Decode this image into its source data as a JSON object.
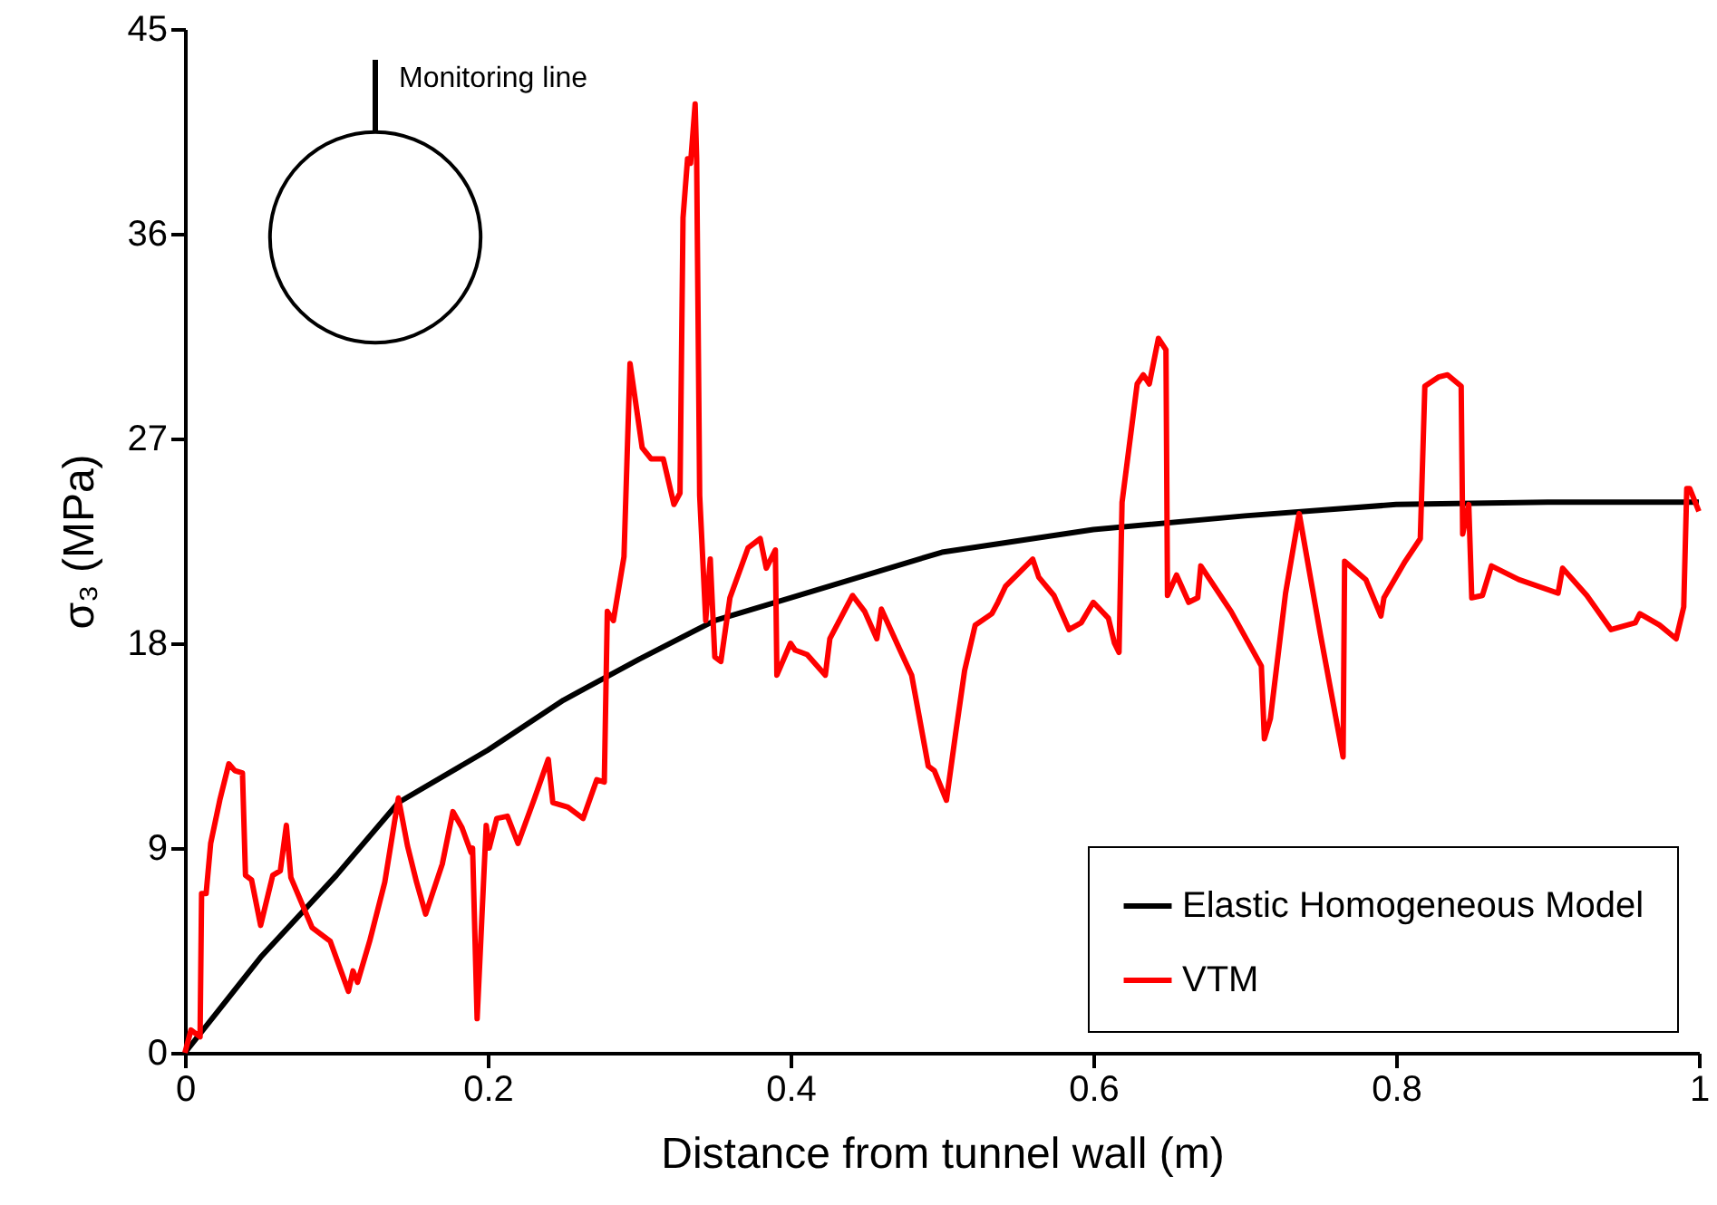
{
  "chart_data": {
    "type": "line",
    "xlabel": "Distance from tunnel wall (m)",
    "ylabel": "σ₃ (MPa)",
    "xlim": [
      0,
      1
    ],
    "xticks": [
      0,
      0.2,
      0.4,
      0.6,
      0.8,
      1
    ],
    "ylim": [
      0,
      45
    ],
    "yticks": [
      0,
      9,
      18,
      27,
      36,
      45
    ],
    "grid": false,
    "legend": "bottom right",
    "marker": "none",
    "line_style": "solid",
    "annotations": [
      "Monitoring line"
    ],
    "series": [
      {
        "name": "Elastic Homogeneous Model",
        "color": "#000000",
        "x": [
          0,
          0.05,
          0.1,
          0.141,
          0.2,
          0.25,
          0.3,
          0.35,
          0.4,
          0.5,
          0.6,
          0.7,
          0.8,
          0.9,
          1.0
        ],
        "values": [
          0,
          4.2,
          7.8,
          11.0,
          13.3,
          15.5,
          17.3,
          19.0,
          20.0,
          22.0,
          23.0,
          23.6,
          24.1,
          24.2,
          24.2
        ]
      },
      {
        "name": "VTM",
        "color": "#ff0000",
        "x": [
          0,
          0.004,
          0.01,
          0.011,
          0.014,
          0.017,
          0.023,
          0.029,
          0.033,
          0.038,
          0.04,
          0.044,
          0.05,
          0.058,
          0.063,
          0.067,
          0.07,
          0.084,
          0.096,
          0.108,
          0.111,
          0.114,
          0.122,
          0.132,
          0.141,
          0.147,
          0.153,
          0.159,
          0.17,
          0.177,
          0.183,
          0.189,
          0.19,
          0.193,
          0.199,
          0.201,
          0.206,
          0.213,
          0.22,
          0.231,
          0.24,
          0.243,
          0.253,
          0.263,
          0.272,
          0.277,
          0.279,
          0.283,
          0.29,
          0.294,
          0.302,
          0.308,
          0.316,
          0.323,
          0.327,
          0.329,
          0.332,
          0.334,
          0.337,
          0.338,
          0.34,
          0.344,
          0.347,
          0.35,
          0.354,
          0.36,
          0.372,
          0.38,
          0.384,
          0.39,
          0.391,
          0.4,
          0.403,
          0.411,
          0.423,
          0.426,
          0.441,
          0.449,
          0.457,
          0.46,
          0.473,
          0.48,
          0.491,
          0.495,
          0.503,
          0.509,
          0.515,
          0.522,
          0.533,
          0.537,
          0.542,
          0.56,
          0.564,
          0.574,
          0.584,
          0.592,
          0.6,
          0.61,
          0.614,
          0.617,
          0.619,
          0.629,
          0.633,
          0.637,
          0.643,
          0.648,
          0.649,
          0.655,
          0.663,
          0.669,
          0.671,
          0.691,
          0.711,
          0.713,
          0.717,
          0.727,
          0.736,
          0.75,
          0.765,
          0.766,
          0.78,
          0.79,
          0.792,
          0.806,
          0.816,
          0.819,
          0.828,
          0.834,
          0.843,
          0.844,
          0.848,
          0.85,
          0.857,
          0.863,
          0.881,
          0.907,
          0.91,
          0.926,
          0.942,
          0.958,
          0.961,
          0.974,
          0.985,
          0.99,
          0.992,
          0.994,
          1.0
        ],
        "values": [
          0,
          1.0,
          0.7,
          7.0,
          7.0,
          9.2,
          11.1,
          12.7,
          12.4,
          12.3,
          7.8,
          7.6,
          5.6,
          7.8,
          8.0,
          10.0,
          7.7,
          5.5,
          4.9,
          2.7,
          3.6,
          3.1,
          4.9,
          7.5,
          11.2,
          9.1,
          7.5,
          6.1,
          8.3,
          10.6,
          9.9,
          8.8,
          9.0,
          1.5,
          10.0,
          9.0,
          10.3,
          10.4,
          9.2,
          11.2,
          12.9,
          11.0,
          10.8,
          10.3,
          12.0,
          11.9,
          19.4,
          19.0,
          21.8,
          30.3,
          26.6,
          26.1,
          26.1,
          24.1,
          24.6,
          36.7,
          39.3,
          39.1,
          41.7,
          39.3,
          24.5,
          19.0,
          21.7,
          17.4,
          17.2,
          20.0,
          22.2,
          22.6,
          21.3,
          22.1,
          16.6,
          18.0,
          17.7,
          17.5,
          16.6,
          18.2,
          20.1,
          19.4,
          18.2,
          19.5,
          17.6,
          16.6,
          12.6,
          12.4,
          11.1,
          14.0,
          16.8,
          18.8,
          19.3,
          19.8,
          20.5,
          21.7,
          20.9,
          20.1,
          18.6,
          18.9,
          19.8,
          19.1,
          18.0,
          17.6,
          24.2,
          29.4,
          29.8,
          29.4,
          31.4,
          30.9,
          20.1,
          21.0,
          19.8,
          20.0,
          21.4,
          19.4,
          17.0,
          13.8,
          14.7,
          20.2,
          23.7,
          18.4,
          13.0,
          21.6,
          20.8,
          19.2,
          20.0,
          21.6,
          22.6,
          29.3,
          29.7,
          29.8,
          29.3,
          22.8,
          24.1,
          20.0,
          20.1,
          21.4,
          20.8,
          20.2,
          21.3,
          20.1,
          18.6,
          18.9,
          19.3,
          18.8,
          18.2,
          19.6,
          24.8,
          24.8,
          23.8
        ]
      }
    ]
  }
}
